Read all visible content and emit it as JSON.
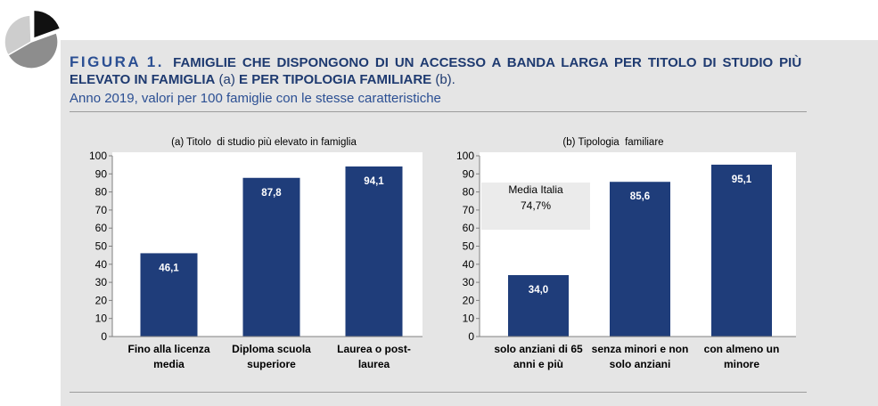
{
  "logo": {
    "icon": "pie-chart-icon"
  },
  "title": {
    "figure_label": "FIGURA 1.",
    "line1": "FAMIGLIE CHE DISPONGONO DI UN ACCESSO A BANDA LARGA PER TITOLO DI STUDIO PIÙ",
    "line2": "ELEVATO IN FAMIGLIA",
    "ref_a": "(a)",
    "line2_cont": "E PER TIPOLOGIA FAMILIARE",
    "ref_b": "(b)."
  },
  "subtitle": "Anno 2019, valori per 100 famiglie con le stesse caratteristiche",
  "colors": {
    "bar": "#1f3d7a",
    "title": "#1e3a70",
    "figure_label": "#2b4f93",
    "subtitle": "#2b4f93",
    "panel_background": "#e5e5e5",
    "plot_background": "#ffffff",
    "axis": "#808080",
    "annotation_box": "#ebebeb",
    "bar_value_text": "#ffffff"
  },
  "chart_data": [
    {
      "type": "bar",
      "title": "(a) Titolo  di studio più elevato in famiglia",
      "categories": [
        "Fino alla licenza\nmedia",
        "Diploma scuola\nsuperiore",
        "Laurea o post-\nlaurea"
      ],
      "values": [
        46.1,
        87.8,
        94.1
      ],
      "data_labels": [
        "46,1",
        "87,8",
        "94,1"
      ],
      "ylim": [
        0,
        100
      ],
      "yticks": [
        0,
        10,
        20,
        30,
        40,
        50,
        60,
        70,
        80,
        90,
        100
      ],
      "grid": false
    },
    {
      "type": "bar",
      "title": "(b) Tipologia  familiare",
      "categories": [
        "solo anziani di 65\nanni e più",
        "senza minori e non\nsolo anziani",
        "con almeno un\nminore"
      ],
      "values": [
        34.0,
        85.6,
        95.1
      ],
      "data_labels": [
        "34,0",
        "85,6",
        "95,1"
      ],
      "ylim": [
        0,
        100
      ],
      "yticks": [
        0,
        10,
        20,
        30,
        40,
        50,
        60,
        70,
        80,
        90,
        100
      ],
      "annotation": {
        "label": "Media Italia",
        "value": "74,7%"
      },
      "grid": false
    }
  ]
}
